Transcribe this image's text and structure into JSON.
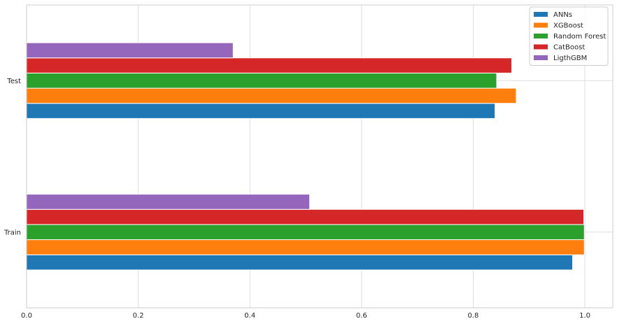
{
  "chart_data": {
    "type": "bar",
    "orientation": "horizontal",
    "categories": [
      "Train",
      "Test"
    ],
    "series": [
      {
        "name": "ANNs",
        "color": "#1f77b4",
        "values": [
          0.978,
          0.839
        ]
      },
      {
        "name": "XGBoost",
        "color": "#ff7f0e",
        "values": [
          0.999,
          0.877
        ]
      },
      {
        "name": "Random Forest",
        "color": "#2ca02c",
        "values": [
          0.999,
          0.842
        ]
      },
      {
        "name": "CatBoost",
        "color": "#d62728",
        "values": [
          0.998,
          0.869
        ]
      },
      {
        "name": "LigthGBM",
        "color": "#9467bd",
        "values": [
          0.507,
          0.37
        ]
      }
    ],
    "xlim": [
      0,
      1.05
    ],
    "xticks": [
      "0.0",
      "0.2",
      "0.4",
      "0.6",
      "0.8",
      "1.0"
    ],
    "grid": true,
    "legend_position": "top-right",
    "title": "",
    "xlabel": "",
    "ylabel": ""
  }
}
